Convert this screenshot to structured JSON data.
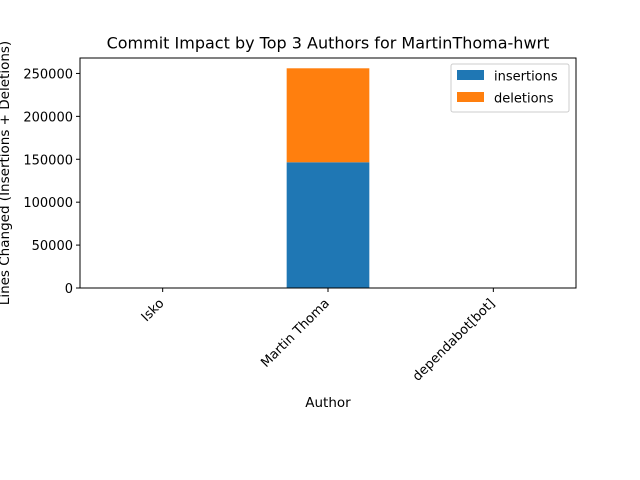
{
  "chart_data": {
    "type": "bar",
    "stacked": true,
    "title": "Commit Impact by Top 3 Authors for MartinThoma-hwrt",
    "xlabel": "Author",
    "ylabel": "Lines Changed (Insertions + Deletions)",
    "categories": [
      "Isko",
      "Martin Thoma",
      "dependabot[bot]"
    ],
    "series": [
      {
        "name": "insertions",
        "color": "#1f77b4",
        "values": [
          0,
          146500,
          0
        ]
      },
      {
        "name": "deletions",
        "color": "#ff7f0e",
        "values": [
          0,
          109500,
          0
        ]
      }
    ],
    "ylim": [
      0,
      268000
    ],
    "yticks": [
      0,
      50000,
      100000,
      150000,
      200000,
      250000
    ],
    "legend_position": "top-right",
    "grid": false
  }
}
